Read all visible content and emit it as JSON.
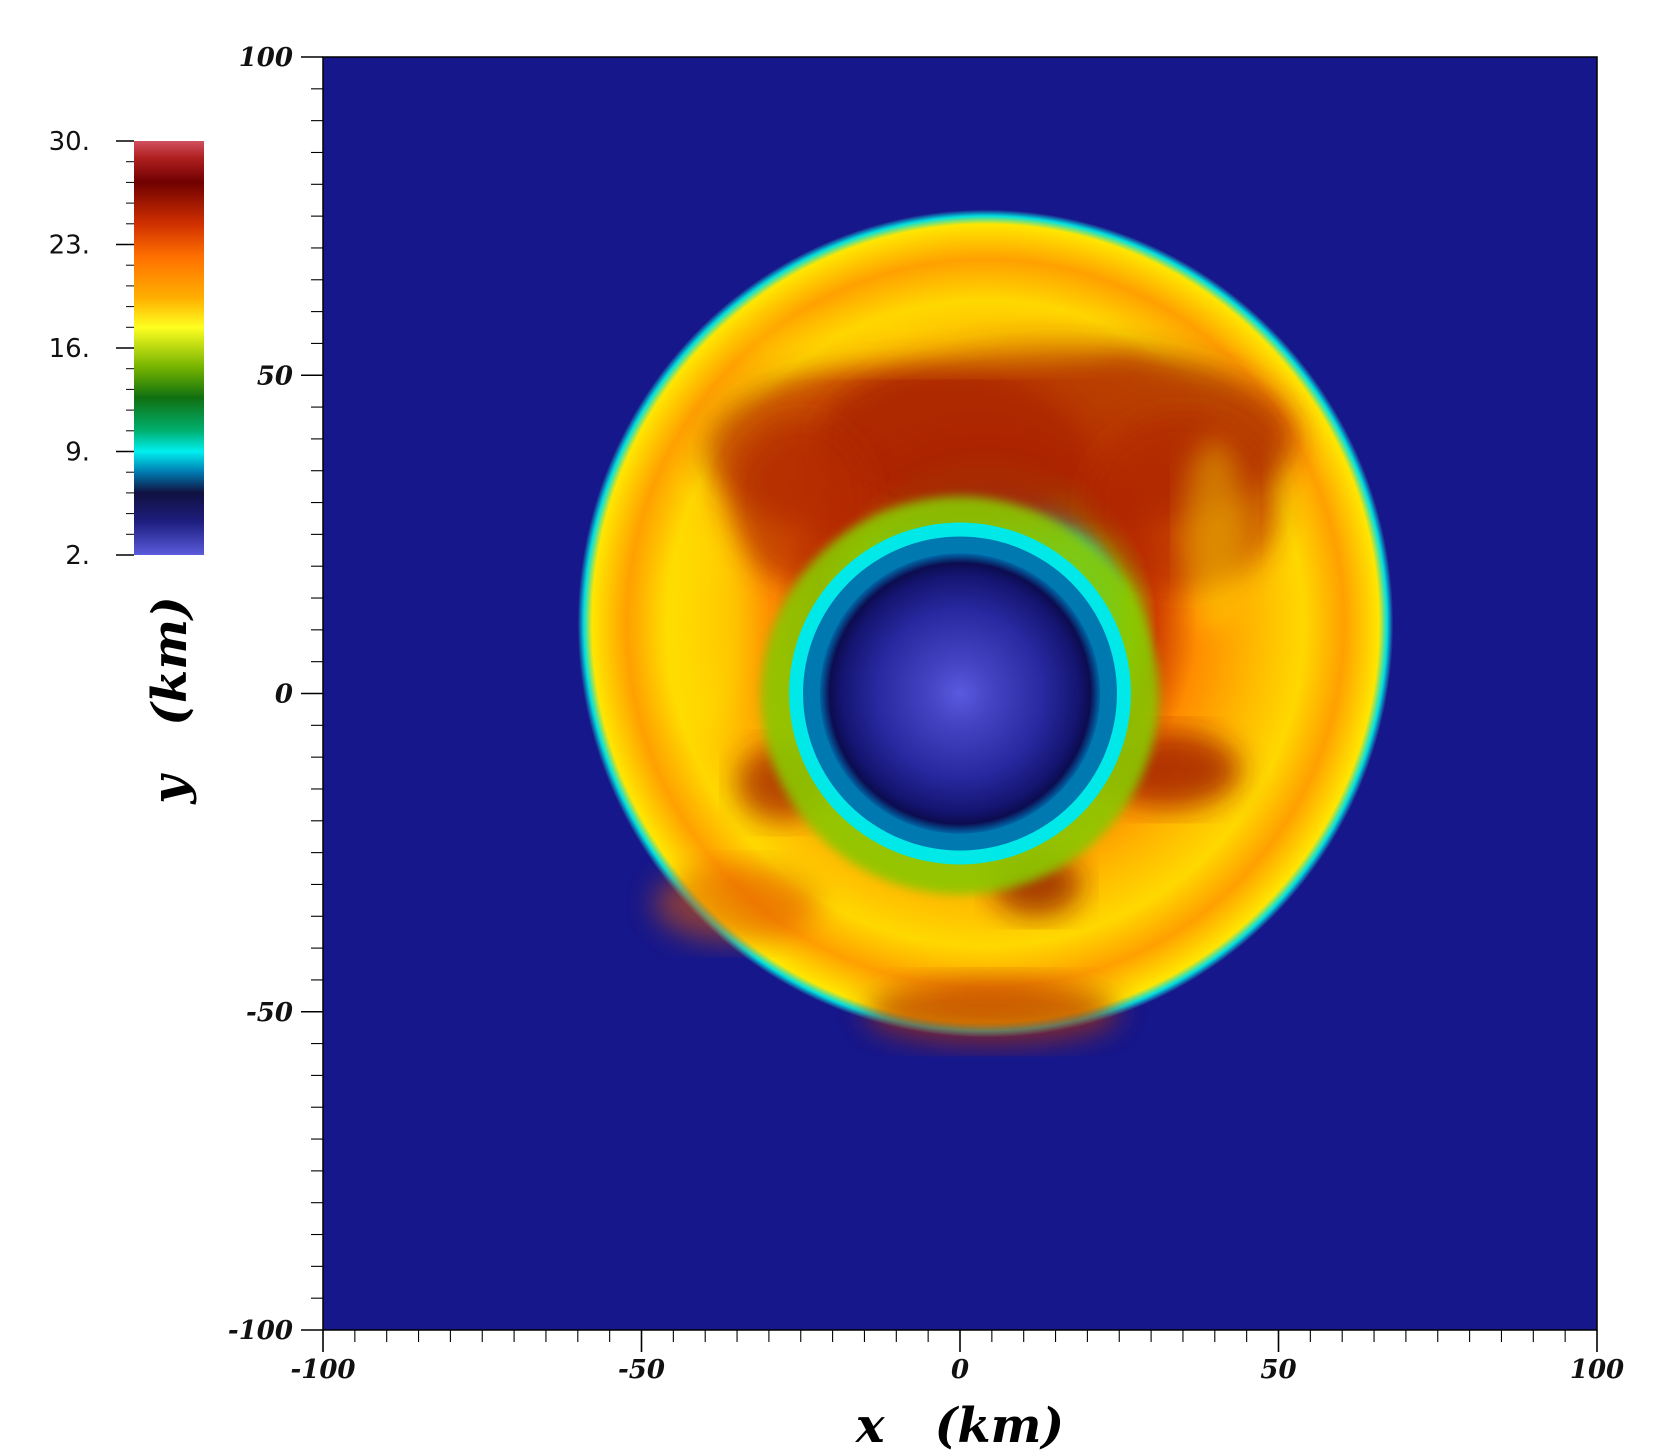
{
  "chart_data": {
    "type": "heatmap",
    "xlabel": "x   (km)",
    "ylabel": "y   (km)",
    "xlim": [
      -100,
      100
    ],
    "ylim": [
      -100,
      100
    ],
    "x_ticks": [
      "-100",
      "-50",
      "0",
      "50",
      "100"
    ],
    "y_ticks": [
      "100",
      "50",
      "0",
      "-50",
      "-100"
    ],
    "x_tick_values": [
      -100,
      -50,
      0,
      50,
      100
    ],
    "y_tick_values": [
      100,
      50,
      0,
      -50,
      -100
    ],
    "colorbar": {
      "range": [
        2,
        30
      ],
      "labels": [
        "30.",
        "23.",
        "16.",
        "9.",
        "2."
      ],
      "values": [
        30,
        23,
        16,
        9,
        2
      ],
      "colors": [
        "#5b5bdc",
        "#1e1e80",
        "#101040",
        "#007ab0",
        "#00f0f0",
        "#00b070",
        "#107010",
        "#70b000",
        "#ffff20",
        "#ffb000",
        "#ff7000",
        "#d03000",
        "#700000",
        "#b02020",
        "#d05060"
      ]
    },
    "background_color": "#16178a",
    "field": {
      "outer_disk_center_km": [
        4,
        11
      ],
      "outer_disk_radius_km": 64,
      "inner_core_radius_km": 22,
      "center_value": 2,
      "core_value": 4,
      "shell_value": 10,
      "disk_value_range": [
        14,
        26
      ]
    }
  }
}
